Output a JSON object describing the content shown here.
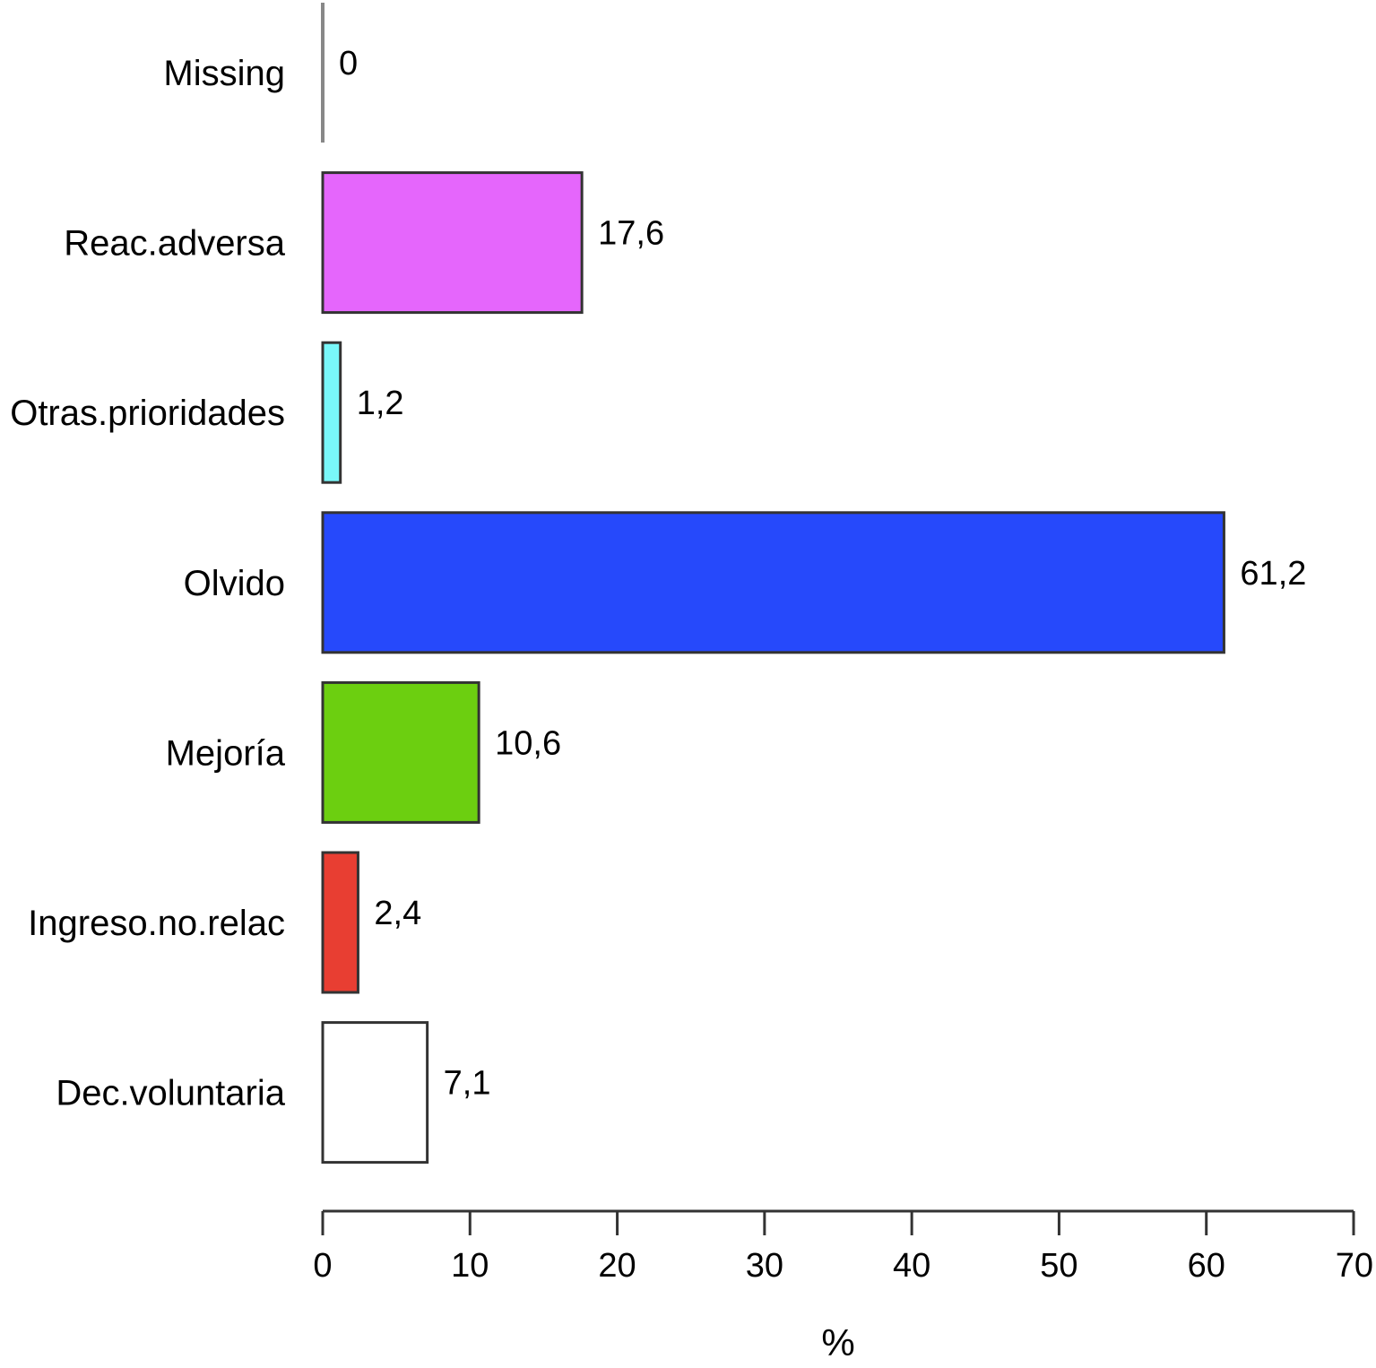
{
  "chart_data": {
    "type": "bar",
    "orientation": "horizontal",
    "categories": [
      "Missing",
      "Reac.adversa",
      "Otras.prioridades",
      "Olvido",
      "Mejoría",
      "Ingreso.no.relac",
      "Dec.voluntaria"
    ],
    "values": [
      0,
      17.6,
      1.2,
      61.2,
      10.6,
      2.4,
      7.1
    ],
    "value_labels": [
      "0",
      "17,6",
      "1,2",
      "61,2",
      "10,6",
      "2,4",
      "7,1"
    ],
    "colors": [
      "#888888",
      "#e566fc",
      "#79f7f9",
      "#2649fb",
      "#6ccf10",
      "#e83e32",
      "#ffffff"
    ],
    "xlabel": "%",
    "ylabel": "",
    "xlim": [
      0,
      70
    ],
    "xticks": [
      0,
      10,
      20,
      30,
      40,
      50,
      60,
      70
    ],
    "xtick_labels": [
      "0",
      "10",
      "20",
      "30",
      "40",
      "50",
      "60",
      "70"
    ],
    "grid": false,
    "legend": "none"
  }
}
